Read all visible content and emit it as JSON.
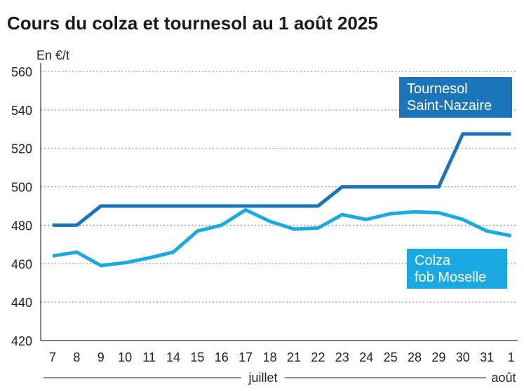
{
  "chart_data": {
    "type": "line",
    "title": "Cours du colza et tournesol au 1 août 2025",
    "unit_label": "En €/t",
    "ylim": [
      420,
      560
    ],
    "yticks": [
      420,
      440,
      460,
      480,
      500,
      520,
      540,
      560
    ],
    "grid": "horizontal dotted",
    "categories": [
      "7",
      "8",
      "9",
      "10",
      "11",
      "14",
      "15",
      "16",
      "17",
      "18",
      "21",
      "22",
      "23",
      "24",
      "25",
      "28",
      "29",
      "30",
      "31",
      "1"
    ],
    "month_labels": [
      {
        "label": "juillet"
      },
      {
        "label": "août"
      }
    ],
    "series": [
      {
        "name_lines": [
          "Tournesol",
          "Saint-Nazaire"
        ],
        "color": "#1b75bb",
        "values": [
          480,
          480,
          490,
          490,
          490,
          490,
          490,
          490,
          490,
          490,
          490,
          490,
          500,
          500,
          500,
          500,
          500,
          527.5,
          527.5,
          527.5
        ]
      },
      {
        "name_lines": [
          "Colza",
          "fob Moselle"
        ],
        "color": "#1aa9e0",
        "values": [
          464,
          466,
          459,
          460.5,
          463,
          466,
          477,
          480,
          488,
          482,
          478,
          478.5,
          485.5,
          483,
          486,
          487,
          486.5,
          483,
          477,
          474.5
        ]
      }
    ]
  }
}
